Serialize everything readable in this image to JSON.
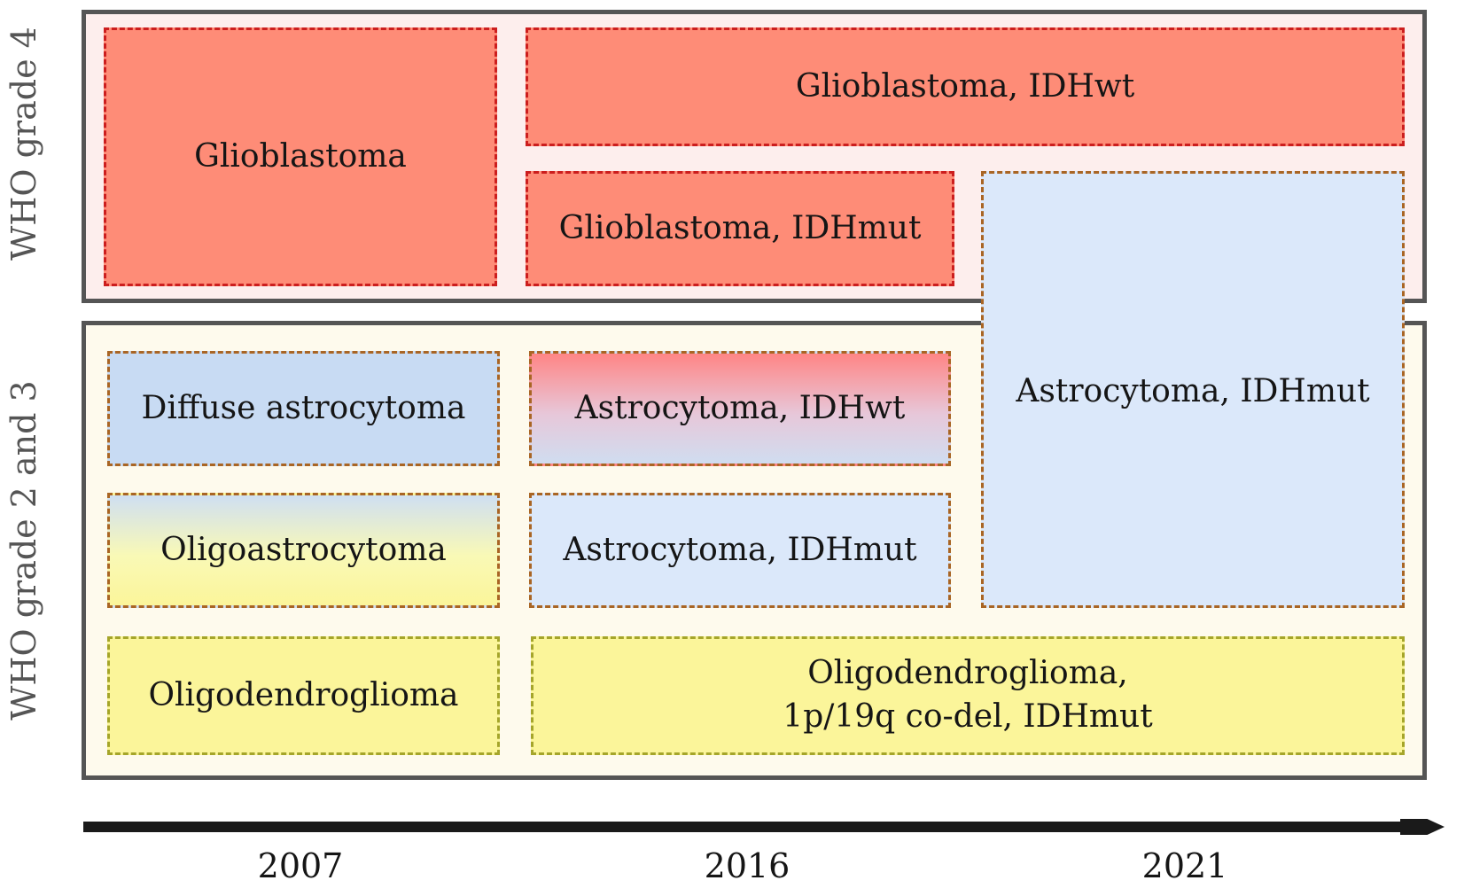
{
  "side_labels": {
    "grade4": "WHO grade 4",
    "grade23": "WHO grade 2 and 3"
  },
  "boxes": {
    "glioblastoma": "Glioblastoma",
    "glioblastoma_idhwt": "Glioblastoma, IDHwt",
    "glioblastoma_idhmut": "Glioblastoma, IDHmut",
    "astrocytoma_idhmut_2021": "Astrocytoma, IDHmut",
    "diffuse_astrocytoma": "Diffuse astrocytoma",
    "astrocytoma_idhwt": "Astrocytoma, IDHwt",
    "oligoastrocytoma": "Oligoastrocytoma",
    "astrocytoma_idhmut_2016": "Astrocytoma, IDHmut",
    "oligodendroglioma": "Oligodendroglioma",
    "oligodendroglioma_codel": "Oligodendroglioma,\n1p/19q co-del, IDHmut"
  },
  "timeline": {
    "years": [
      "2007",
      "2016",
      "2021"
    ]
  },
  "colors": {
    "grade4_background": "#fdeeed",
    "grade23_background": "#fefaed",
    "panel_border": "#555555",
    "red_fill": "#fe8c77",
    "red_border": "#cc1e1e",
    "blue_fill": "#dbe8fa",
    "blue_border": "#a96524",
    "yellow_fill": "#fbf59a",
    "yellow_border": "#a5a52a",
    "arrow": "#1a1a1a"
  }
}
